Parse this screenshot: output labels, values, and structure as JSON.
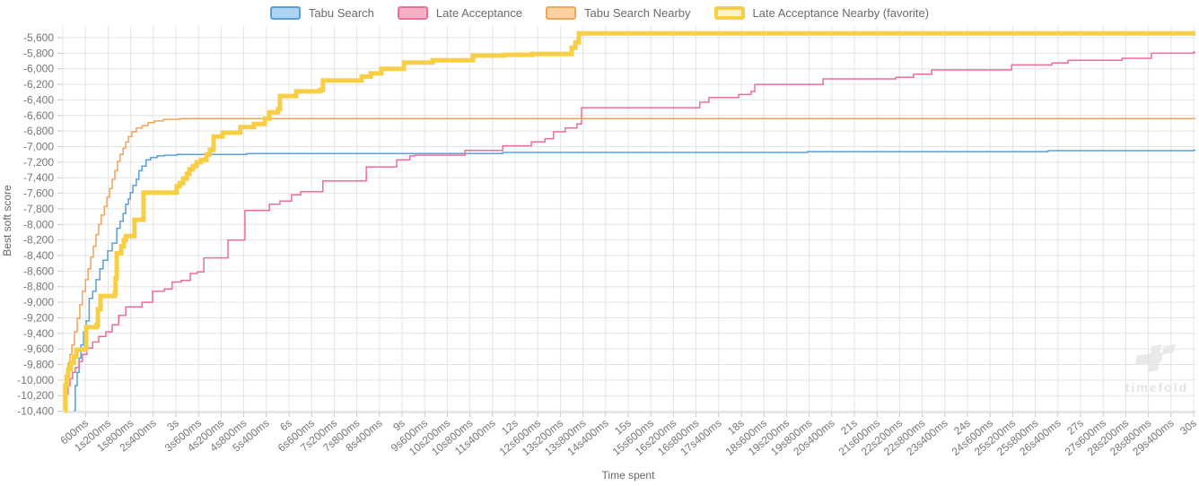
{
  "watermark": {
    "text": "timefold"
  },
  "chart_data": {
    "type": "line-step",
    "title": "",
    "xlabel": "Time spent",
    "ylabel": "Best soft score",
    "x_unit": "ms",
    "x_max_ms": 30000,
    "x_tick_interval_ms": 600,
    "ylim": [
      -10415,
      -5460
    ],
    "grid": true,
    "legend_position": "top",
    "y_ticks": [
      -5600,
      -5800,
      -6000,
      -6200,
      -6400,
      -6600,
      -6800,
      -7000,
      -7200,
      -7400,
      -7600,
      -7800,
      -8000,
      -8200,
      -8400,
      -8600,
      -8800,
      -9000,
      -9200,
      -9400,
      -9600,
      -9800,
      -10000,
      -10200,
      -10400
    ],
    "x_ticks": [
      {
        "ms": 600,
        "label": "600ms"
      },
      {
        "ms": 1200,
        "label": "1s200ms"
      },
      {
        "ms": 1800,
        "label": "1s800ms"
      },
      {
        "ms": 2400,
        "label": "2s400ms"
      },
      {
        "ms": 3000,
        "label": "3s"
      },
      {
        "ms": 3600,
        "label": "3s600ms"
      },
      {
        "ms": 4200,
        "label": "4s200ms"
      },
      {
        "ms": 4800,
        "label": "4s800ms"
      },
      {
        "ms": 5400,
        "label": "5s400ms"
      },
      {
        "ms": 6000,
        "label": "6s"
      },
      {
        "ms": 6600,
        "label": "6s600ms"
      },
      {
        "ms": 7200,
        "label": "7s200ms"
      },
      {
        "ms": 7800,
        "label": "7s800ms"
      },
      {
        "ms": 8400,
        "label": "8s400ms"
      },
      {
        "ms": 9000,
        "label": "9s"
      },
      {
        "ms": 9600,
        "label": "9s600ms"
      },
      {
        "ms": 10200,
        "label": "10s200ms"
      },
      {
        "ms": 10800,
        "label": "10s800ms"
      },
      {
        "ms": 11400,
        "label": "11s400ms"
      },
      {
        "ms": 12000,
        "label": "12s"
      },
      {
        "ms": 12600,
        "label": "12s600ms"
      },
      {
        "ms": 13200,
        "label": "13s200ms"
      },
      {
        "ms": 13800,
        "label": "13s800ms"
      },
      {
        "ms": 14400,
        "label": "14s400ms"
      },
      {
        "ms": 15000,
        "label": "15s"
      },
      {
        "ms": 15600,
        "label": "15s600ms"
      },
      {
        "ms": 16200,
        "label": "16s200ms"
      },
      {
        "ms": 16800,
        "label": "16s800ms"
      },
      {
        "ms": 17400,
        "label": "17s400ms"
      },
      {
        "ms": 18000,
        "label": "18s"
      },
      {
        "ms": 18600,
        "label": "18s600ms"
      },
      {
        "ms": 19200,
        "label": "19s200ms"
      },
      {
        "ms": 19800,
        "label": "19s800ms"
      },
      {
        "ms": 20400,
        "label": "20s400ms"
      },
      {
        "ms": 21000,
        "label": "21s"
      },
      {
        "ms": 21600,
        "label": "21s600ms"
      },
      {
        "ms": 22200,
        "label": "22s200ms"
      },
      {
        "ms": 22800,
        "label": "22s800ms"
      },
      {
        "ms": 23400,
        "label": "23s400ms"
      },
      {
        "ms": 24000,
        "label": "24s"
      },
      {
        "ms": 24600,
        "label": "24s600ms"
      },
      {
        "ms": 25200,
        "label": "25s200ms"
      },
      {
        "ms": 25800,
        "label": "25s800ms"
      },
      {
        "ms": 26400,
        "label": "26s400ms"
      },
      {
        "ms": 27000,
        "label": "27s"
      },
      {
        "ms": 27600,
        "label": "27s600ms"
      },
      {
        "ms": 28200,
        "label": "28s200ms"
      },
      {
        "ms": 28800,
        "label": "28s800ms"
      },
      {
        "ms": 29400,
        "label": "29s400ms"
      },
      {
        "ms": 30000,
        "label": "30s"
      }
    ],
    "series": [
      {
        "name": "Tabu Search",
        "color": "#58a0dc",
        "legend_fill": "#aed4f2",
        "legend_border_width": 2,
        "line_width": 1.5,
        "points": [
          [
            290,
            -10390
          ],
          [
            330,
            -10070
          ],
          [
            380,
            -9900
          ],
          [
            430,
            -9720
          ],
          [
            480,
            -9550
          ],
          [
            550,
            -9380
          ],
          [
            620,
            -9240
          ],
          [
            700,
            -8950
          ],
          [
            790,
            -8860
          ],
          [
            880,
            -8710
          ],
          [
            980,
            -8570
          ],
          [
            1070,
            -8460
          ],
          [
            1190,
            -8340
          ],
          [
            1310,
            -8240
          ],
          [
            1430,
            -8050
          ],
          [
            1520,
            -7960
          ],
          [
            1600,
            -7860
          ],
          [
            1670,
            -7740
          ],
          [
            1740,
            -7670
          ],
          [
            1790,
            -7590
          ],
          [
            1860,
            -7500
          ],
          [
            1950,
            -7420
          ],
          [
            2020,
            -7310
          ],
          [
            2100,
            -7250
          ],
          [
            2210,
            -7170
          ],
          [
            2330,
            -7140
          ],
          [
            2500,
            -7120
          ],
          [
            2690,
            -7110
          ],
          [
            3020,
            -7100
          ],
          [
            4880,
            -7090
          ],
          [
            11670,
            -7075
          ],
          [
            19760,
            -7065
          ],
          [
            26140,
            -7052
          ],
          [
            30000,
            -7046
          ]
        ]
      },
      {
        "name": "Late Acceptance",
        "color": "#ed6e96",
        "legend_fill": "#f8b0c5",
        "legend_border_width": 2,
        "line_width": 1.5,
        "points": [
          [
            70,
            -10370
          ],
          [
            100,
            -10180
          ],
          [
            140,
            -10070
          ],
          [
            190,
            -9980
          ],
          [
            260,
            -9900
          ],
          [
            330,
            -9840
          ],
          [
            430,
            -9760
          ],
          [
            520,
            -9670
          ],
          [
            640,
            -9590
          ],
          [
            790,
            -9510
          ],
          [
            950,
            -9440
          ],
          [
            1140,
            -9380
          ],
          [
            1310,
            -9290
          ],
          [
            1480,
            -9170
          ],
          [
            1670,
            -9060
          ],
          [
            2100,
            -9000
          ],
          [
            2380,
            -8860
          ],
          [
            2690,
            -8830
          ],
          [
            2900,
            -8740
          ],
          [
            3140,
            -8720
          ],
          [
            3380,
            -8630
          ],
          [
            3570,
            -8610
          ],
          [
            3740,
            -8430
          ],
          [
            4380,
            -8200
          ],
          [
            4830,
            -7820
          ],
          [
            5480,
            -7740
          ],
          [
            5760,
            -7700
          ],
          [
            6070,
            -7620
          ],
          [
            6310,
            -7580
          ],
          [
            6900,
            -7440
          ],
          [
            8050,
            -7260
          ],
          [
            8860,
            -7170
          ],
          [
            9210,
            -7120
          ],
          [
            9330,
            -7110
          ],
          [
            10670,
            -7050
          ],
          [
            11670,
            -6990
          ],
          [
            12430,
            -6940
          ],
          [
            12790,
            -6900
          ],
          [
            13020,
            -6810
          ],
          [
            13330,
            -6760
          ],
          [
            13640,
            -6710
          ],
          [
            13760,
            -6500
          ],
          [
            16900,
            -6430
          ],
          [
            17140,
            -6370
          ],
          [
            17930,
            -6330
          ],
          [
            18260,
            -6290
          ],
          [
            18360,
            -6200
          ],
          [
            20170,
            -6130
          ],
          [
            22100,
            -6110
          ],
          [
            22570,
            -6070
          ],
          [
            23050,
            -6015
          ],
          [
            25170,
            -5950
          ],
          [
            26240,
            -5925
          ],
          [
            26670,
            -5890
          ],
          [
            28100,
            -5865
          ],
          [
            28880,
            -5800
          ],
          [
            30000,
            -5785
          ]
        ]
      },
      {
        "name": "Tabu Search Nearby",
        "color": "#f2a458",
        "legend_fill": "#fad2a2",
        "legend_border_width": 2,
        "line_width": 1.5,
        "points": [
          [
            50,
            -10360
          ],
          [
            100,
            -9960
          ],
          [
            140,
            -9780
          ],
          [
            190,
            -9670
          ],
          [
            240,
            -9550
          ],
          [
            310,
            -9380
          ],
          [
            380,
            -9210
          ],
          [
            450,
            -9030
          ],
          [
            520,
            -8860
          ],
          [
            600,
            -8710
          ],
          [
            670,
            -8570
          ],
          [
            740,
            -8420
          ],
          [
            810,
            -8280
          ],
          [
            880,
            -8130
          ],
          [
            950,
            -8000
          ],
          [
            1020,
            -7880
          ],
          [
            1100,
            -7770
          ],
          [
            1170,
            -7650
          ],
          [
            1240,
            -7540
          ],
          [
            1310,
            -7420
          ],
          [
            1380,
            -7310
          ],
          [
            1450,
            -7190
          ],
          [
            1520,
            -7100
          ],
          [
            1600,
            -7020
          ],
          [
            1670,
            -6940
          ],
          [
            1740,
            -6870
          ],
          [
            1830,
            -6810
          ],
          [
            1950,
            -6760
          ],
          [
            2100,
            -6730
          ],
          [
            2260,
            -6690
          ],
          [
            2430,
            -6670
          ],
          [
            2670,
            -6650
          ],
          [
            3100,
            -6640
          ],
          [
            30000,
            -6640
          ]
        ]
      },
      {
        "name": "Late Acceptance Nearby (favorite)",
        "color": "#f8ce44",
        "legend_fill": "#fdf2c9",
        "legend_border_width": 4,
        "line_width": 5,
        "points": [
          [
            50,
            -10390
          ],
          [
            70,
            -10070
          ],
          [
            100,
            -9960
          ],
          [
            140,
            -9860
          ],
          [
            210,
            -9780
          ],
          [
            290,
            -9700
          ],
          [
            360,
            -9610
          ],
          [
            600,
            -9590
          ],
          [
            620,
            -9320
          ],
          [
            900,
            -9290
          ],
          [
            930,
            -9090
          ],
          [
            1000,
            -8920
          ],
          [
            1380,
            -8880
          ],
          [
            1400,
            -8690
          ],
          [
            1430,
            -8370
          ],
          [
            1550,
            -8280
          ],
          [
            1620,
            -8200
          ],
          [
            1670,
            -8150
          ],
          [
            1900,
            -7940
          ],
          [
            2140,
            -7590
          ],
          [
            3020,
            -7510
          ],
          [
            3100,
            -7470
          ],
          [
            3190,
            -7410
          ],
          [
            3290,
            -7350
          ],
          [
            3360,
            -7290
          ],
          [
            3450,
            -7250
          ],
          [
            3550,
            -7200
          ],
          [
            3670,
            -7170
          ],
          [
            3810,
            -7100
          ],
          [
            3900,
            -7040
          ],
          [
            4000,
            -6870
          ],
          [
            4240,
            -6820
          ],
          [
            4710,
            -6750
          ],
          [
            5070,
            -6710
          ],
          [
            5360,
            -6640
          ],
          [
            5480,
            -6560
          ],
          [
            5710,
            -6520
          ],
          [
            5760,
            -6350
          ],
          [
            6190,
            -6290
          ],
          [
            6830,
            -6270
          ],
          [
            6900,
            -6150
          ],
          [
            7930,
            -6100
          ],
          [
            8170,
            -6060
          ],
          [
            8450,
            -6000
          ],
          [
            9050,
            -5920
          ],
          [
            9810,
            -5890
          ],
          [
            10880,
            -5830
          ],
          [
            11710,
            -5820
          ],
          [
            12450,
            -5810
          ],
          [
            13500,
            -5730
          ],
          [
            13600,
            -5660
          ],
          [
            13690,
            -5545
          ],
          [
            30000,
            -5545
          ]
        ]
      }
    ]
  }
}
